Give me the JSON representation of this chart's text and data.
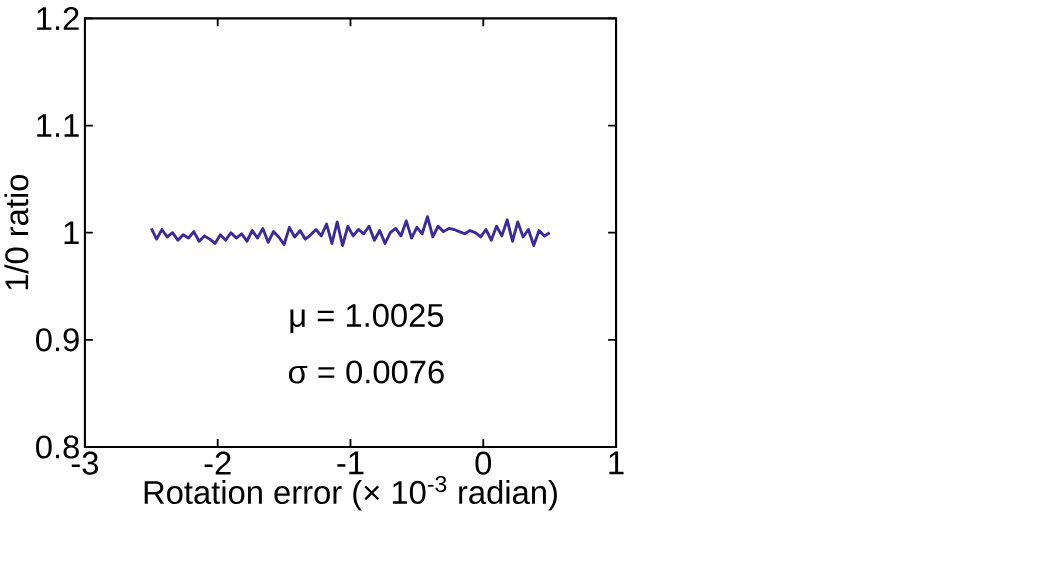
{
  "chart_data": {
    "type": "line",
    "xlabel": "Rotation error (× 10$^{-3}$ radian)",
    "ylabel": "1/0 ratio",
    "annotations": [
      "μ = 1.0025",
      "σ = 0.0076"
    ],
    "xlim": [
      -3,
      1
    ],
    "ylim": [
      0.8,
      1.2
    ],
    "xticks": [
      -3,
      -2,
      -1,
      0,
      1
    ],
    "yticks": [
      0.8,
      0.9,
      1,
      1.1,
      1.2
    ],
    "grid": false,
    "marker": "none",
    "line_style": "solid",
    "series": [
      {
        "color": "#3a2a9c",
        "x": [
          -2.5,
          -2.46,
          -2.42,
          -2.38,
          -2.34,
          -2.3,
          -2.26,
          -2.22,
          -2.18,
          -2.14,
          -2.1,
          -2.06,
          -2.02,
          -1.98,
          -1.94,
          -1.9,
          -1.86,
          -1.82,
          -1.78,
          -1.74,
          -1.7,
          -1.66,
          -1.62,
          -1.58,
          -1.54,
          -1.5,
          -1.46,
          -1.42,
          -1.38,
          -1.34,
          -1.3,
          -1.26,
          -1.22,
          -1.18,
          -1.14,
          -1.1,
          -1.06,
          -1.02,
          -0.98,
          -0.94,
          -0.9,
          -0.86,
          -0.82,
          -0.78,
          -0.74,
          -0.7,
          -0.66,
          -0.62,
          -0.58,
          -0.54,
          -0.5,
          -0.46,
          -0.42,
          -0.38,
          -0.34,
          -0.3,
          -0.26,
          -0.22,
          -0.18,
          -0.14,
          -0.1,
          -0.06,
          -0.02,
          0.02,
          0.06,
          0.1,
          0.14,
          0.18,
          0.22,
          0.26,
          0.3,
          0.34,
          0.38,
          0.42,
          0.46,
          0.5
        ],
        "values": [
          1.004,
          0.994,
          1.003,
          0.996,
          1.0,
          0.993,
          0.998,
          0.995,
          1.001,
          0.992,
          0.997,
          0.994,
          0.99,
          0.998,
          0.993,
          1.0,
          0.995,
          0.999,
          0.992,
          1.002,
          0.995,
          1.004,
          0.991,
          1.001,
          0.996,
          0.989,
          1.005,
          0.996,
          1.002,
          0.994,
          0.998,
          1.003,
          0.997,
          1.008,
          0.99,
          1.01,
          0.988,
          1.006,
          0.997,
          1.003,
          0.999,
          1.006,
          0.993,
          1.002,
          0.99,
          1.0,
          1.004,
          0.997,
          1.011,
          0.995,
          1.005,
          0.999,
          1.015,
          0.996,
          1.006,
          1.001,
          1.004,
          1.003,
          1.001,
          0.999,
          1.002,
          1.0,
          0.996,
          1.003,
          0.993,
          1.006,
          0.997,
          1.012,
          0.992,
          1.01,
          0.996,
          1.003,
          0.988,
          1.002,
          0.997,
          1.0
        ]
      }
    ]
  }
}
